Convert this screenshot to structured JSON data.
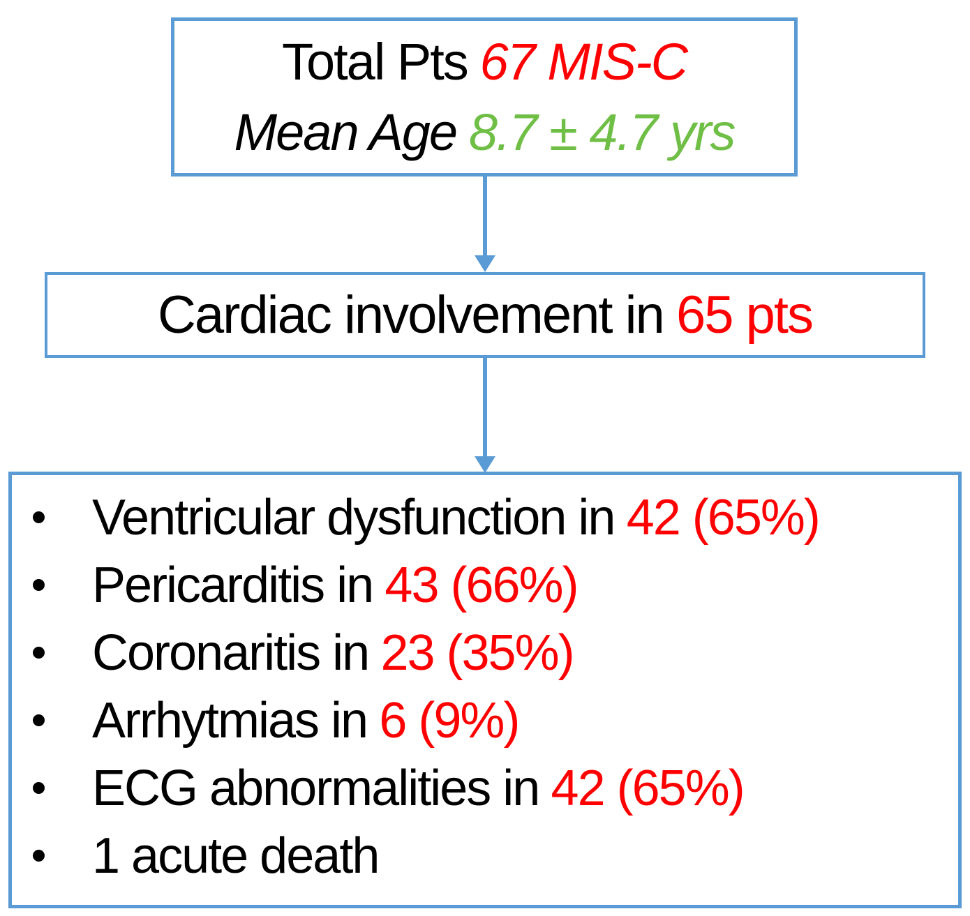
{
  "colors": {
    "border_blue": "#5B9BD5",
    "accent_red": "#FF0000",
    "accent_green": "#6FBE45",
    "text_black": "#000000"
  },
  "top_box": {
    "line1_prefix": "Total Pts",
    "line1_highlight": "67 MIS-C",
    "line2_prefix": "Mean Age",
    "line2_highlight": "8.7 ± 4.7 yrs"
  },
  "middle_box": {
    "prefix": "Cardiac involvement in",
    "highlight": "65 pts"
  },
  "bottom_box": {
    "bullets": [
      {
        "label": "Ventricular dysfunction in",
        "value": "42 (65%)"
      },
      {
        "label": "Pericarditis in",
        "value": "43 (66%)"
      },
      {
        "label": "Coronaritis in",
        "value": "23 (35%)"
      },
      {
        "label": "Arrhytmias in",
        "value": "6 (9%)"
      },
      {
        "label": "ECG abnormalities in",
        "value": "42 (65%)"
      },
      {
        "label": "1 acute death",
        "value": ""
      }
    ]
  }
}
